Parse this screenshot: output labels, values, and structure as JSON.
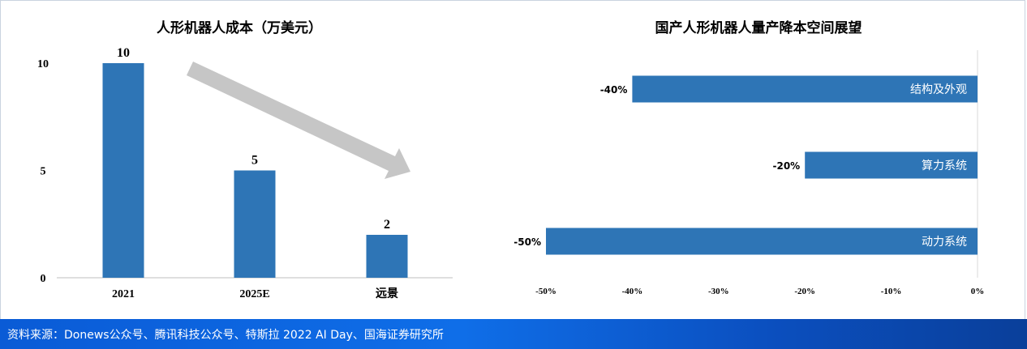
{
  "colors": {
    "bar": "#2e75b6",
    "arrow": "#c6c6c6",
    "axis": "#bfbfbf",
    "footer": "#0d62df"
  },
  "chart_data": [
    {
      "type": "bar",
      "title": "人形机器人成本（万美元）",
      "categories": [
        "2021",
        "2025E",
        "远景"
      ],
      "values": [
        10,
        5,
        2
      ],
      "data_labels": [
        "10",
        "5",
        "2"
      ],
      "yticks": [
        "0",
        "5",
        "10"
      ],
      "ylim": [
        0,
        10
      ],
      "xlabel": "",
      "ylabel": "",
      "annotation": "downward-trend-arrow"
    },
    {
      "type": "bar",
      "orientation": "horizontal",
      "title": "国产人形机器人量产降本空间展望",
      "categories": [
        "结构及外观",
        "算力系统",
        "动力系统"
      ],
      "values": [
        -40,
        -20,
        -50
      ],
      "data_labels": [
        "-40%",
        "-20%",
        "-50%"
      ],
      "xticks": [
        "-50%",
        "-40%",
        "-30%",
        "-20%",
        "-10%",
        "0%"
      ],
      "xlim": [
        -50,
        0
      ],
      "xlabel": "",
      "ylabel": ""
    }
  ],
  "footer": {
    "source": "资料来源：Donews公众号、腾讯科技公众号、特斯拉 2022 AI Day、国海证券研究所"
  }
}
